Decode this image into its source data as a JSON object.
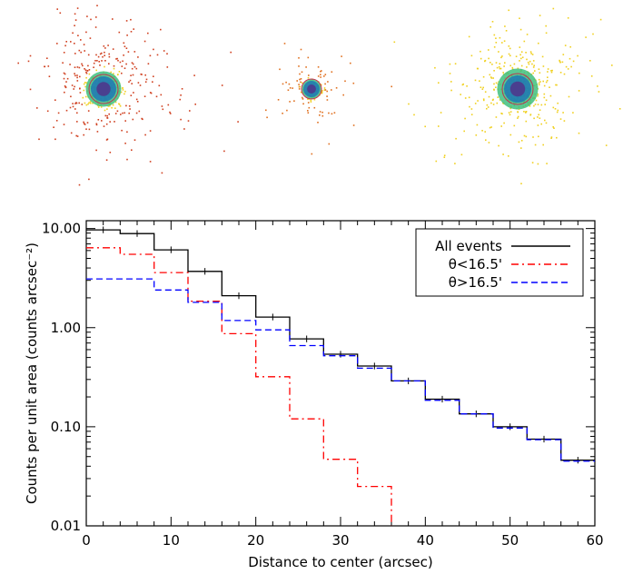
{
  "psf_panels": {
    "count": 3,
    "colors": [
      "#1f77b4",
      "#3fbf7f",
      "#7fcf3f",
      "#f0d020",
      "#e07020",
      "#d04020"
    ]
  },
  "chart_data": {
    "type": "line",
    "subtype": "step",
    "title": "",
    "xlabel": "Distance to center (arcsec)",
    "ylabel": "Counts per unit area (counts arcsec⁻²)",
    "xlim": [
      0,
      60
    ],
    "ylim": [
      0.01,
      12
    ],
    "yscale": "log",
    "xticks": [
      0,
      10,
      20,
      30,
      40,
      50,
      60
    ],
    "yticks": [
      0.01,
      0.1,
      1.0,
      10.0
    ],
    "ytick_labels": [
      "0.01",
      "0.10",
      "1.00",
      "10.00"
    ],
    "x_edges": [
      0,
      4,
      8,
      12,
      16,
      20,
      24,
      28,
      32,
      36,
      40,
      44,
      48,
      52,
      56,
      60
    ],
    "legend": {
      "placement": "top-right"
    },
    "series": [
      {
        "name": "All events",
        "color": "#000000",
        "dash": "solid",
        "values": [
          9.7,
          8.9,
          6.1,
          3.7,
          2.1,
          1.28,
          0.77,
          0.54,
          0.41,
          0.29,
          0.19,
          0.135,
          0.1,
          0.075,
          0.046
        ],
        "errors": true
      },
      {
        "name": "θ<16.5'",
        "color": "#ff0000",
        "dash": "dashdot",
        "values": [
          6.4,
          5.5,
          3.6,
          1.85,
          0.87,
          0.32,
          0.12,
          0.047,
          0.025,
          0.0095,
          0.0095,
          null,
          null,
          null,
          null
        ],
        "errors": false
      },
      {
        "name": "θ>16.5'",
        "color": "#0000ff",
        "dash": "dashed",
        "values": [
          3.1,
          3.1,
          2.4,
          1.8,
          1.18,
          0.95,
          0.66,
          0.52,
          0.39,
          0.29,
          0.185,
          0.135,
          0.097,
          0.074,
          0.045
        ],
        "errors": false
      }
    ]
  }
}
